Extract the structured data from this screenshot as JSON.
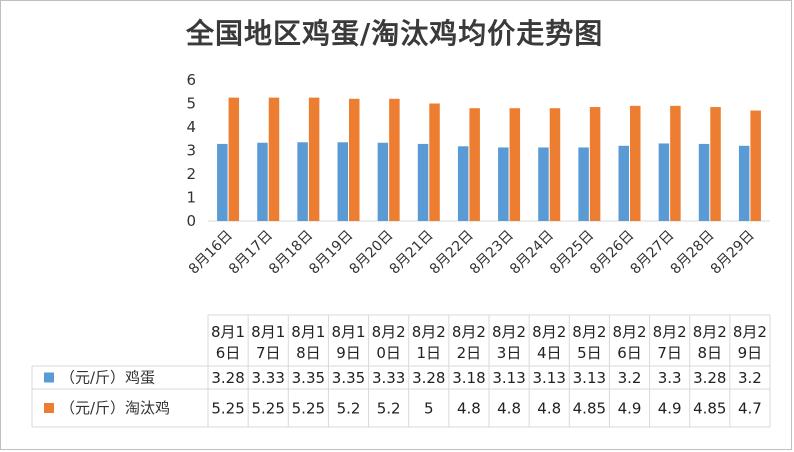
{
  "chart_data": {
    "type": "bar",
    "title": "全国地区鸡蛋/淘汰鸡均价走势图",
    "categories": [
      "8月16日",
      "8月17日",
      "8月18日",
      "8月19日",
      "8月20日",
      "8月21日",
      "8月22日",
      "8月23日",
      "8月24日",
      "8月25日",
      "8月26日",
      "8月27日",
      "8月28日",
      "8月29日"
    ],
    "table_headers": [
      [
        "8月1",
        "6日"
      ],
      [
        "8月1",
        "7日"
      ],
      [
        "8月1",
        "8日"
      ],
      [
        "8月1",
        "9日"
      ],
      [
        "8月2",
        "0日"
      ],
      [
        "8月2",
        "1日"
      ],
      [
        "8月2",
        "2日"
      ],
      [
        "8月2",
        "3日"
      ],
      [
        "8月2",
        "4日"
      ],
      [
        "8月2",
        "5日"
      ],
      [
        "8月2",
        "6日"
      ],
      [
        "8月2",
        "7日"
      ],
      [
        "8月2",
        "8日"
      ],
      [
        "8月2",
        "9日"
      ]
    ],
    "series": [
      {
        "name": "（元/斤）鸡蛋",
        "color": "#5b9bd5",
        "values": [
          3.28,
          3.33,
          3.35,
          3.35,
          3.33,
          3.28,
          3.18,
          3.13,
          3.13,
          3.13,
          3.2,
          3.3,
          3.28,
          3.2
        ],
        "labels": [
          "3.28",
          "3.33",
          "3.35",
          "3.35",
          "3.33",
          "3.28",
          "3.18",
          "3.13",
          "3.13",
          "3.13",
          "3.2",
          "3.3",
          "3.28",
          "3.2"
        ]
      },
      {
        "name": "（元/斤）淘汰鸡",
        "color": "#ed7d31",
        "values": [
          5.25,
          5.25,
          5.25,
          5.2,
          5.2,
          5,
          4.8,
          4.8,
          4.8,
          4.85,
          4.9,
          4.9,
          4.85,
          4.7
        ],
        "labels": [
          "5.25",
          "5.25",
          "5.25",
          "5.2",
          "5.2",
          "5",
          "4.8",
          "4.8",
          "4.8",
          "4.85",
          "4.9",
          "4.9",
          "4.85",
          "4.7"
        ]
      }
    ],
    "ylim": [
      0,
      6
    ],
    "yticks": [
      "0",
      "1",
      "2",
      "3",
      "4",
      "5",
      "6"
    ],
    "grid": false,
    "legend": "data-table"
  }
}
